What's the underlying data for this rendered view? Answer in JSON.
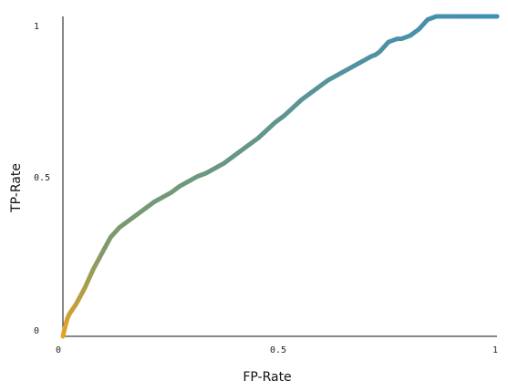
{
  "chart_data": {
    "type": "line",
    "title": "",
    "xlabel": "FP-Rate",
    "ylabel": "TP-Rate",
    "xlim": [
      0,
      1
    ],
    "ylim": [
      0,
      1
    ],
    "x_ticks": [
      "0",
      "0.5",
      "1"
    ],
    "y_ticks": [
      "0",
      "0.5",
      "1"
    ],
    "grid": false,
    "legend": "none",
    "color_start": "#e8a125",
    "color_end": "#3f8fb5",
    "series": [
      {
        "x": [
          0.0,
          0.005,
          0.01,
          0.015,
          0.02,
          0.03,
          0.04,
          0.05,
          0.06,
          0.07,
          0.08,
          0.09,
          0.1,
          0.11,
          0.12,
          0.13,
          0.15,
          0.17,
          0.19,
          0.21,
          0.23,
          0.25,
          0.27,
          0.29,
          0.31,
          0.33,
          0.35,
          0.37,
          0.39,
          0.41,
          0.43,
          0.45,
          0.47,
          0.49,
          0.51,
          0.53,
          0.55,
          0.57,
          0.59,
          0.61,
          0.63,
          0.65,
          0.67,
          0.69,
          0.71,
          0.72,
          0.73,
          0.75,
          0.77,
          0.78,
          0.79,
          0.8,
          0.82,
          0.84,
          0.86,
          0.88,
          0.9,
          0.92,
          0.95,
          1.0
        ],
        "y": [
          0.0,
          0.03,
          0.055,
          0.07,
          0.08,
          0.1,
          0.125,
          0.15,
          0.18,
          0.21,
          0.235,
          0.26,
          0.285,
          0.31,
          0.325,
          0.34,
          0.36,
          0.38,
          0.4,
          0.42,
          0.435,
          0.45,
          0.47,
          0.485,
          0.5,
          0.51,
          0.525,
          0.54,
          0.56,
          0.58,
          0.6,
          0.62,
          0.645,
          0.67,
          0.69,
          0.715,
          0.74,
          0.76,
          0.78,
          0.8,
          0.815,
          0.83,
          0.845,
          0.86,
          0.875,
          0.88,
          0.89,
          0.92,
          0.93,
          0.93,
          0.935,
          0.94,
          0.96,
          0.99,
          1.0,
          1.0,
          1.0,
          1.0,
          1.0,
          1.0
        ]
      }
    ]
  }
}
